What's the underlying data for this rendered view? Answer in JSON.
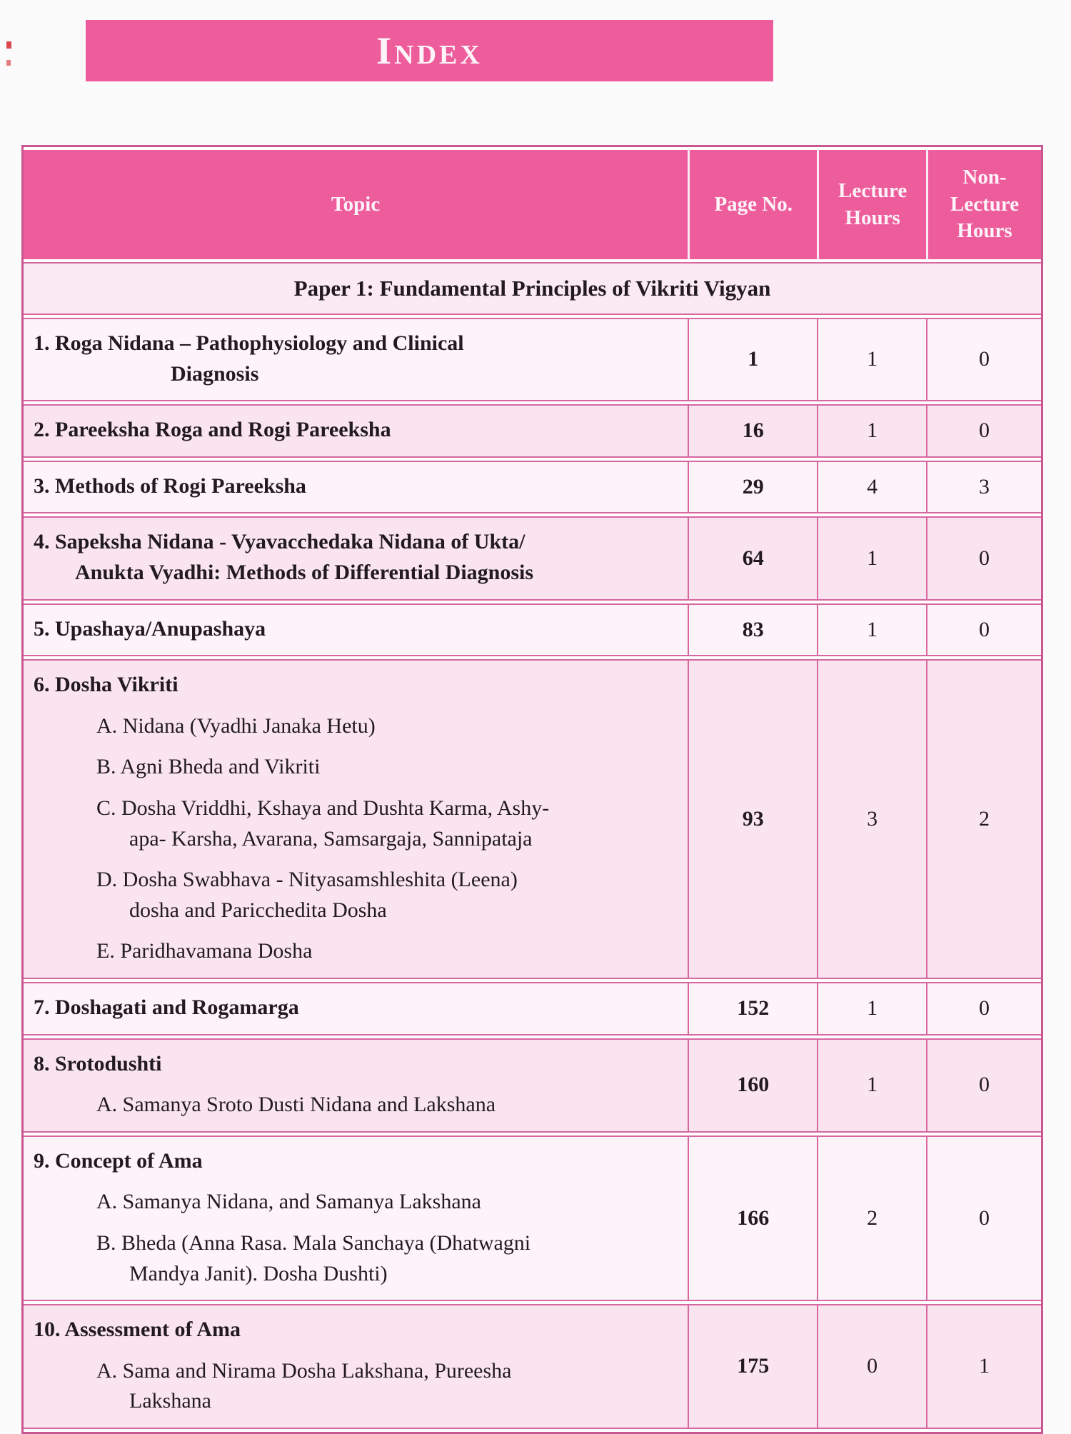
{
  "banner": {
    "title": "Index"
  },
  "colors": {
    "accent_pink": "#ee5d9b",
    "border_pink": "#d6679f",
    "row_pink": "#f9e4f0",
    "row_light": "#fdf4f9"
  },
  "columns": {
    "topic": "Topic",
    "page": "Page No.",
    "lecture": "Lecture Hours",
    "non_lecture": "Non-Lecture Hours"
  },
  "section": {
    "title": "Paper 1: Fundamental Principles of Vikriti Vigyan"
  },
  "rows": [
    {
      "shade": "light",
      "page": "1",
      "lecture": "1",
      "non_lecture": "0",
      "lines": [
        {
          "style": "main",
          "text": "1. Roga Nidana – Pathophysiology and Clinical"
        },
        {
          "style": "cont-deep",
          "text": "Diagnosis"
        }
      ]
    },
    {
      "shade": "pink",
      "page": "16",
      "lecture": "1",
      "non_lecture": "0",
      "lines": [
        {
          "style": "main",
          "text": "2. Pareeksha Roga and Rogi Pareeksha"
        }
      ]
    },
    {
      "shade": "light",
      "page": "29",
      "lecture": "4",
      "non_lecture": "3",
      "lines": [
        {
          "style": "main",
          "text": "3. Methods of Rogi Pareeksha"
        }
      ]
    },
    {
      "shade": "pink",
      "page": "64",
      "lecture": "1",
      "non_lecture": "0",
      "lines": [
        {
          "style": "main",
          "text": "4. Sapeksha Nidana - Vyavacchedaka Nidana of Ukta/"
        },
        {
          "style": "cont",
          "text": "Anukta Vyadhi: Methods of Differential Diagnosis"
        }
      ]
    },
    {
      "shade": "light",
      "page": "83",
      "lecture": "1",
      "non_lecture": "0",
      "lines": [
        {
          "style": "main",
          "text": "5. Upashaya/Anupashaya"
        }
      ]
    },
    {
      "shade": "pink",
      "page": "93",
      "lecture": "3",
      "non_lecture": "2",
      "lines": [
        {
          "style": "main",
          "text": "6. Dosha Vikriti"
        },
        {
          "style": "sub",
          "text": "A. Nidana (Vyadhi Janaka Hetu)"
        },
        {
          "style": "sub",
          "text": "B. Agni Bheda and Vikriti"
        },
        {
          "style": "sub",
          "text": "C. Dosha Vriddhi, Kshaya and Dushta Karma, Ashy-"
        },
        {
          "style": "subcont",
          "text": "apa- Karsha, Avarana, Samsargaja, Sannipataja"
        },
        {
          "style": "sub",
          "text": "D. Dosha Swabhava - Nityasamshleshita (Leena)"
        },
        {
          "style": "subcont",
          "text": "dosha and Paricchedita Dosha"
        },
        {
          "style": "sub",
          "text": "E. Paridhavamana Dosha"
        }
      ]
    },
    {
      "shade": "light",
      "page": "152",
      "lecture": "1",
      "non_lecture": "0",
      "lines": [
        {
          "style": "main",
          "text": "7. Doshagati and Rogamarga"
        }
      ]
    },
    {
      "shade": "pink",
      "page": "160",
      "lecture": "1",
      "non_lecture": "0",
      "lines": [
        {
          "style": "main",
          "text": "8. Srotodushti"
        },
        {
          "style": "sub",
          "text": "A. Samanya Sroto Dusti Nidana and Lakshana"
        }
      ]
    },
    {
      "shade": "light",
      "page": "166",
      "lecture": "2",
      "non_lecture": "0",
      "lines": [
        {
          "style": "main",
          "text": "9. Concept of Ama"
        },
        {
          "style": "sub",
          "text": "A. Samanya Nidana, and Samanya Lakshana"
        },
        {
          "style": "sub",
          "text": "B. Bheda (Anna Rasa. Mala Sanchaya (Dhatwagni"
        },
        {
          "style": "subcont",
          "text": "Mandya Janit). Dosha Dushti)"
        }
      ]
    },
    {
      "shade": "pink",
      "page": "175",
      "lecture": "0",
      "non_lecture": "1",
      "lines": [
        {
          "style": "main",
          "text": "10. Assessment of Ama"
        },
        {
          "style": "sub",
          "text": "A. Sama and Nirama Dosha Lakshana, Pureesha"
        },
        {
          "style": "subcont",
          "text": "Lakshana"
        }
      ]
    }
  ]
}
